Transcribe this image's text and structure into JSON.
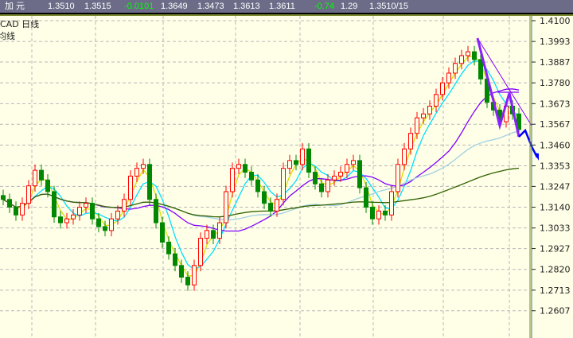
{
  "quote_bar": {
    "name": "加 元",
    "fields": [
      "1.3510",
      "1.3515",
      "-0.0101",
      "1.3649",
      "1.3473",
      "1.3613",
      "1.3611",
      "-0.74",
      "1.29",
      "1.3510/15"
    ]
  },
  "chart_labels": {
    "symbol_period": "CAD  日线",
    "ma_label": "均线"
  },
  "colors": {
    "up": "#ff0000",
    "down": "#008800",
    "ma_short": "#d8e000",
    "ma_mid": "#00e0ff",
    "ma_long": "#8000ff",
    "ma_xlong": "#a0d0e0",
    "ma_xxlong": "#306000",
    "trend": "#0000ff",
    "grid": "#b8b8b8"
  },
  "chart_data": {
    "type": "candlestick",
    "title": "",
    "ylim": [
      1.25,
      1.415
    ],
    "yticks": [
      "1.4100",
      "1.3993",
      "1.3887",
      "1.3780",
      "1.3673",
      "1.3567",
      "1.3460",
      "1.3353",
      "1.3247",
      "1.3140",
      "1.3033",
      "1.2927",
      "1.2820",
      "1.2713",
      "1.2607"
    ],
    "grid": true,
    "close": [
      1.318,
      1.314,
      1.31,
      1.316,
      1.325,
      1.333,
      1.328,
      1.322,
      1.309,
      1.306,
      1.308,
      1.31,
      1.314,
      1.316,
      1.308,
      1.304,
      1.302,
      1.308,
      1.312,
      1.318,
      1.33,
      1.334,
      1.336,
      1.318,
      1.306,
      1.296,
      1.29,
      1.284,
      1.278,
      1.274,
      1.284,
      1.298,
      1.302,
      1.298,
      1.306,
      1.322,
      1.334,
      1.336,
      1.332,
      1.328,
      1.322,
      1.316,
      1.312,
      1.318,
      1.334,
      1.338,
      1.336,
      1.344,
      1.332,
      1.326,
      1.322,
      1.328,
      1.33,
      1.332,
      1.336,
      1.338,
      1.324,
      1.314,
      1.308,
      1.312,
      1.31,
      1.322,
      1.336,
      1.344,
      1.352,
      1.36,
      1.362,
      1.366,
      1.372,
      1.378,
      1.383,
      1.388,
      1.392,
      1.394,
      1.39,
      1.38,
      1.368,
      1.364,
      1.358,
      1.366,
      1.362,
      1.354
    ]
  }
}
